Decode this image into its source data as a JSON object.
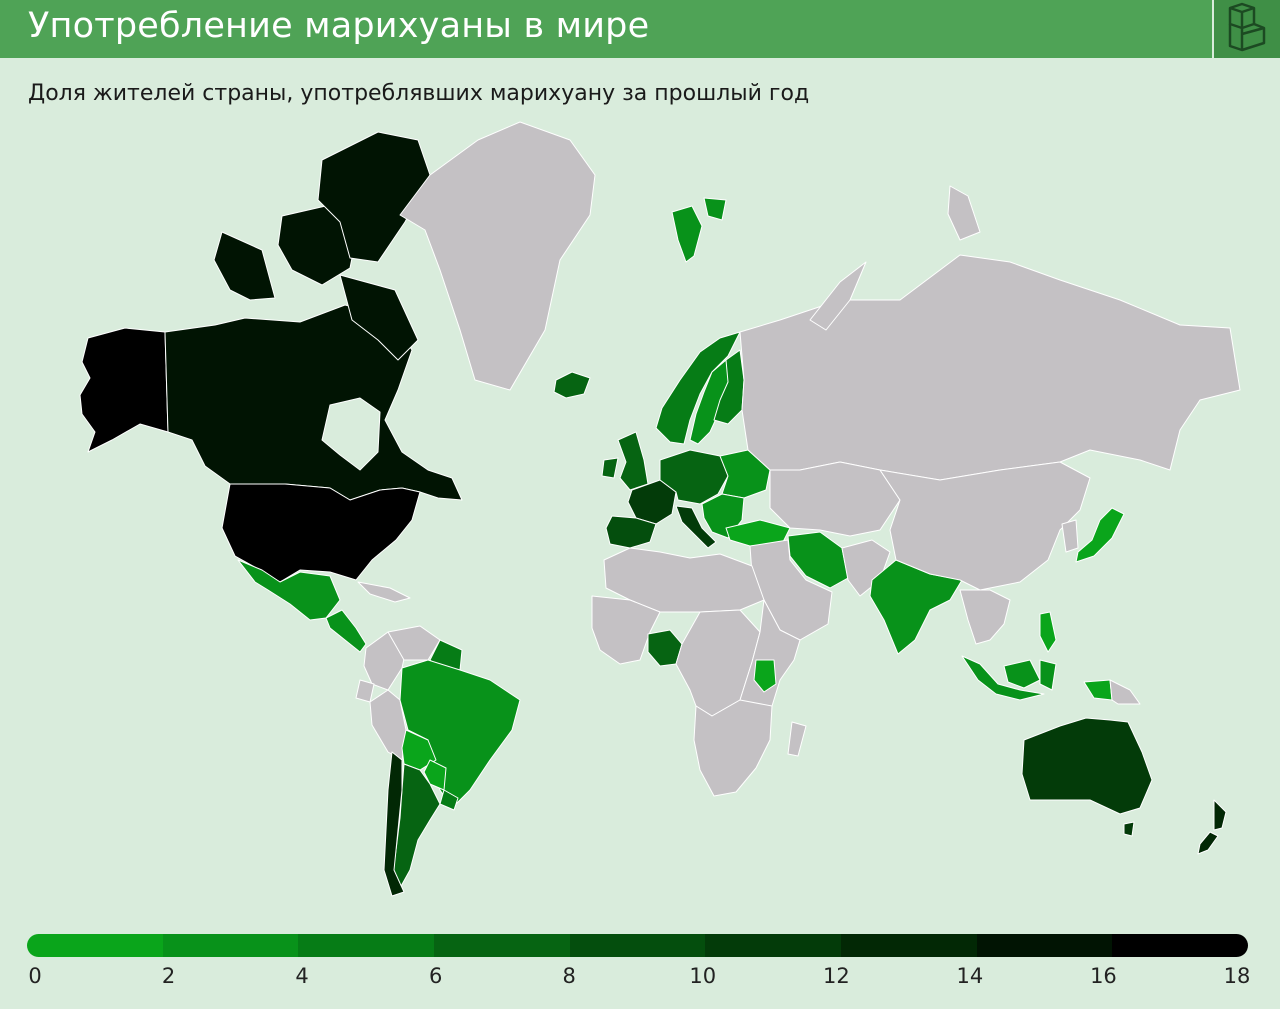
{
  "header": {
    "title": "Употребление марихуаны в мире",
    "logo_icon": "cube-logo-icon"
  },
  "subtitle": "Доля жителей страны, употреблявших марихуану за прошлый год",
  "colors": {
    "no_data": "#c4c1c4",
    "background": "#d9ecdc",
    "header": "#4fa356"
  },
  "legend": {
    "ticks": [
      "0",
      "2",
      "4",
      "6",
      "8",
      "10",
      "12",
      "14",
      "16",
      "18"
    ],
    "bins": [
      {
        "range": [
          0,
          2
        ],
        "color": "#0aa51b"
      },
      {
        "range": [
          2,
          4
        ],
        "color": "#08921a"
      },
      {
        "range": [
          4,
          6
        ],
        "color": "#067c16"
      },
      {
        "range": [
          6,
          8
        ],
        "color": "#066412"
      },
      {
        "range": [
          8,
          10
        ],
        "color": "#044e0d"
      },
      {
        "range": [
          10,
          12
        ],
        "color": "#033b09"
      },
      {
        "range": [
          12,
          14
        ],
        "color": "#022805"
      },
      {
        "range": [
          14,
          16
        ],
        "color": "#011403"
      },
      {
        "range": [
          16,
          18
        ],
        "color": "#000000"
      }
    ]
  },
  "regions": [
    {
      "name": "canada",
      "value": 15
    },
    {
      "name": "alaska",
      "value": 17
    },
    {
      "name": "usa",
      "value": 17
    },
    {
      "name": "greenland",
      "value": null
    },
    {
      "name": "mexico",
      "value": 3
    },
    {
      "name": "central-america",
      "value": 3
    },
    {
      "name": "caribbean",
      "value": null
    },
    {
      "name": "colombia",
      "value": null
    },
    {
      "name": "venezuela",
      "value": null
    },
    {
      "name": "guianas",
      "value": 5
    },
    {
      "name": "ecuador",
      "value": null
    },
    {
      "name": "peru",
      "value": null
    },
    {
      "name": "bolivia",
      "value": 1
    },
    {
      "name": "brazil",
      "value": 3
    },
    {
      "name": "paraguay",
      "value": 1
    },
    {
      "name": "uruguay",
      "value": 5
    },
    {
      "name": "chile",
      "value": 12
    },
    {
      "name": "argentina",
      "value": 7
    },
    {
      "name": "iceland",
      "value": 6
    },
    {
      "name": "svalbard",
      "value": 3
    },
    {
      "name": "norway",
      "value": 4
    },
    {
      "name": "sweden",
      "value": 3
    },
    {
      "name": "finland",
      "value": 5
    },
    {
      "name": "uk-ireland",
      "value": 7
    },
    {
      "name": "iberia",
      "value": 9
    },
    {
      "name": "france",
      "value": 11
    },
    {
      "name": "central-europe",
      "value": 7
    },
    {
      "name": "italy",
      "value": 10
    },
    {
      "name": "eastern-europe",
      "value": 2
    },
    {
      "name": "balkans",
      "value": 3
    },
    {
      "name": "turkey",
      "value": 1
    },
    {
      "name": "russia",
      "value": null
    },
    {
      "name": "caucasus-central-asia",
      "value": null
    },
    {
      "name": "iran",
      "value": 3
    },
    {
      "name": "middle-east",
      "value": null
    },
    {
      "name": "afghanistan-pakistan",
      "value": null
    },
    {
      "name": "india",
      "value": 3
    },
    {
      "name": "china-mongolia",
      "value": null
    },
    {
      "name": "korea",
      "value": null
    },
    {
      "name": "japan",
      "value": 1
    },
    {
      "name": "southeast-asia",
      "value": null
    },
    {
      "name": "philippines",
      "value": 1
    },
    {
      "name": "indonesia-west",
      "value": 2
    },
    {
      "name": "indonesia-east",
      "value": 2
    },
    {
      "name": "papua",
      "value": 1
    },
    {
      "name": "australia",
      "value": 10
    },
    {
      "name": "tasmania",
      "value": 10
    },
    {
      "name": "new-zealand",
      "value": 13
    },
    {
      "name": "north-africa",
      "value": null
    },
    {
      "name": "west-africa",
      "value": null
    },
    {
      "name": "nigeria",
      "value": 6
    },
    {
      "name": "central-africa",
      "value": null
    },
    {
      "name": "east-africa",
      "value": null
    },
    {
      "name": "kenya",
      "value": 1
    },
    {
      "name": "southern-africa",
      "value": null
    },
    {
      "name": "madagascar",
      "value": null
    },
    {
      "name": "arctic-russia-islands",
      "value": null
    }
  ]
}
